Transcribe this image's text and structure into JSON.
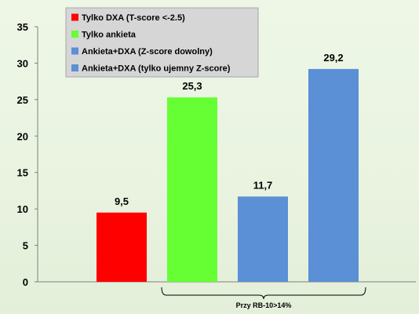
{
  "chart_data": {
    "type": "bar",
    "categories": [
      "Tylko DXA (T-score <-2.5)",
      "Tylko ankieta",
      "Ankieta+DXA (Z-score dowolny)",
      "Ankieta+DXA (tylko ujemny Z-score)"
    ],
    "values": [
      9.5,
      25.3,
      11.7,
      29.2
    ],
    "value_labels": [
      "9,5",
      "25,3",
      "11,7",
      "29,2"
    ],
    "colors": [
      "#ff0000",
      "#66ff33",
      "#5b8fd6",
      "#5b8fd6"
    ],
    "ylim": [
      0,
      35
    ],
    "yticks": [
      0,
      5,
      10,
      15,
      20,
      25,
      30,
      35
    ],
    "grid": false,
    "legend": {
      "placement": "top-left",
      "entries": [
        {
          "label": "Tylko DXA (T-score <-2.5)",
          "color": "#ff0000"
        },
        {
          "label": "Tylko ankieta",
          "color": "#66ff33"
        },
        {
          "label": "Ankieta+DXA (Z-score dowolny)",
          "color": "#5b8fd6"
        },
        {
          "label": "Ankieta+DXA (tylko ujemny Z-score)",
          "color": "#5b8fd6"
        }
      ]
    },
    "annotation": "Przy RB-10>14%"
  }
}
